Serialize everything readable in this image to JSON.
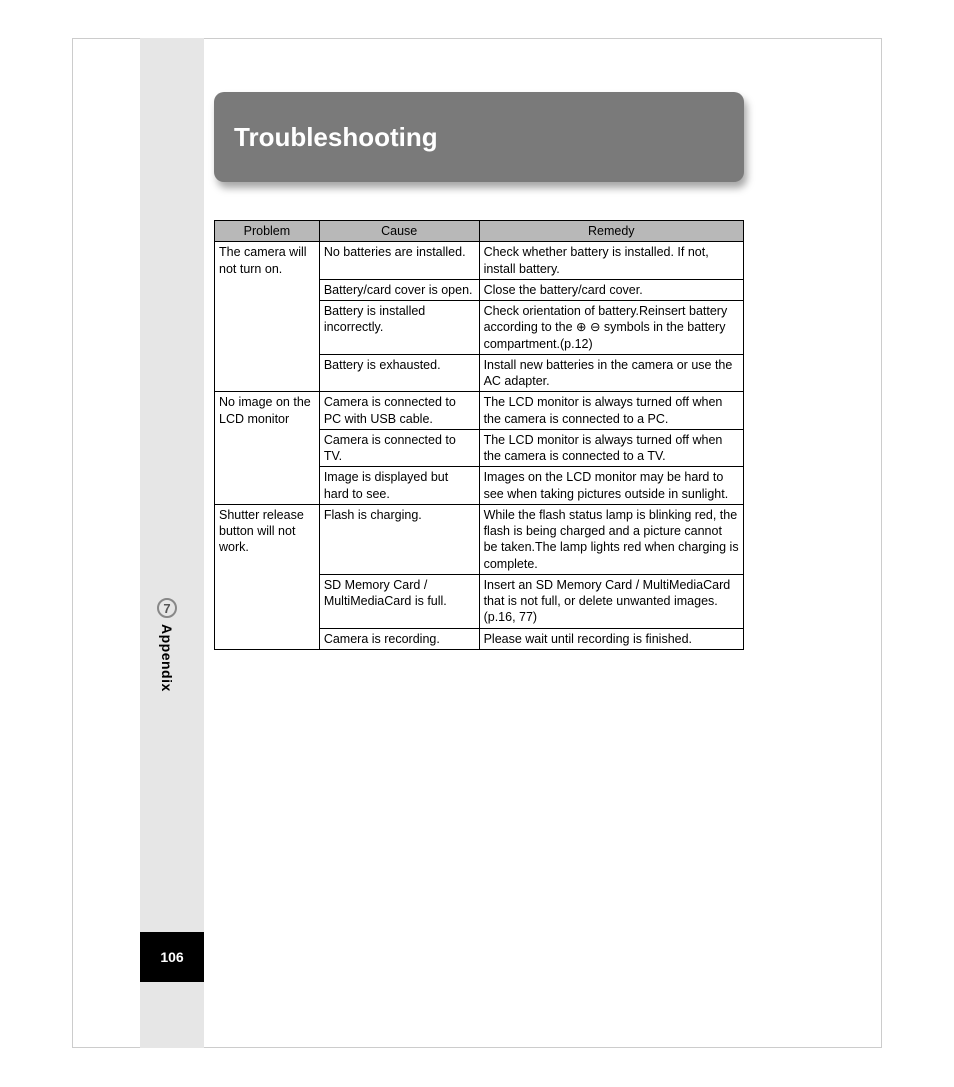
{
  "header": {
    "title": "Troubleshooting"
  },
  "sidebar": {
    "chapter_num": "7",
    "section": "Appendix",
    "page_num": "106"
  },
  "table": {
    "columns": [
      "Problem",
      "Cause",
      "Remedy"
    ],
    "groups": [
      {
        "problem": "The camera will not turn on.",
        "rows": [
          {
            "cause": "No batteries are installed.",
            "remedy": "Check whether battery is installed. If not, install battery."
          },
          {
            "cause": "Battery/card cover is open.",
            "remedy": "Close the battery/card cover."
          },
          {
            "cause": "Battery is installed incorrectly.",
            "remedy": "Check orientation of battery.Reinsert battery according to the ⊕ ⊖ symbols in the battery compartment.(p.12)"
          },
          {
            "cause": "Battery is exhausted.",
            "remedy": "Install new batteries in the camera or use the AC adapter."
          }
        ]
      },
      {
        "problem": "No image on the LCD monitor",
        "rows": [
          {
            "cause": "Camera is connected to PC with USB cable.",
            "remedy": "The LCD monitor is always turned off when the camera is connected to a PC."
          },
          {
            "cause": "Camera is connected to TV.",
            "remedy": "The LCD monitor is always turned off when the camera is connected to a TV."
          },
          {
            "cause": "Image is displayed but hard to see.",
            "remedy": "Images on the LCD monitor may be hard to see when taking pictures outside in sunlight."
          }
        ]
      },
      {
        "problem": "Shutter release button will not work.",
        "rows": [
          {
            "cause": "Flash is charging.",
            "remedy": "While the flash status lamp is blinking red, the flash is being charged and a picture cannot be taken.The lamp lights red when charging is complete."
          },
          {
            "cause": "SD Memory Card / MultiMediaCard is full.",
            "remedy": "Insert an SD Memory Card / MultiMediaCard that is not full, or delete unwanted images.(p.16, 77)"
          },
          {
            "cause": "Camera is recording.",
            "remedy": "Please wait until recording is finished."
          }
        ]
      }
    ]
  },
  "colors": {
    "header_bg": "#7a7a7a",
    "header_text": "#ffffff",
    "table_header_bg": "#b8b8b8",
    "sidebar_bg": "#e6e6e6",
    "pagenum_bg": "#000000",
    "border": "#000000"
  }
}
